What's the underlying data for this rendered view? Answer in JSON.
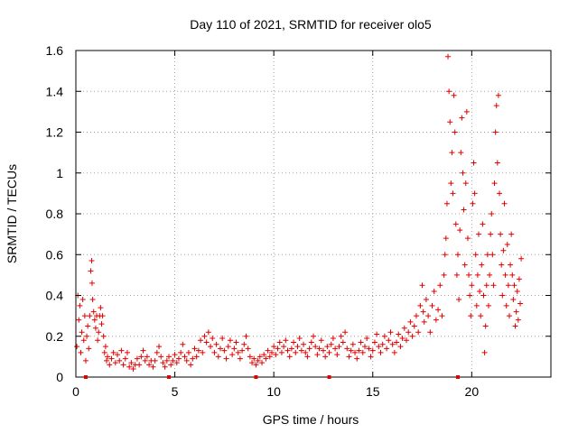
{
  "chart_data": {
    "type": "scatter",
    "title": "Day 110 of 2021, SRMTID for receiver olo5",
    "xlabel": "GPS time / hours",
    "ylabel": "SRMTID / TECUs",
    "xlim": [
      0,
      24
    ],
    "ylim": [
      0,
      1.6
    ],
    "xticks": [
      0,
      5,
      10,
      15,
      20
    ],
    "yticks": [
      0,
      0.2,
      0.4,
      0.6,
      0.8,
      1,
      1.2,
      1.4,
      1.6
    ],
    "xtick_labels": [
      "0",
      "5",
      "10",
      "15",
      "20"
    ],
    "ytick_labels": [
      "0",
      "0.2",
      "0.4",
      "0.6",
      "0.8",
      "1",
      "1.2",
      "1.4",
      "1.6"
    ],
    "grid": true,
    "marker": "+",
    "color": "#e00000",
    "axis_markers_x": [
      0.5,
      4.7,
      9.1,
      12.8,
      19.3
    ],
    "series": [
      {
        "name": "SRMTID",
        "points": [
          [
            0.05,
            0.15
          ],
          [
            0.1,
            0.4
          ],
          [
            0.15,
            0.28
          ],
          [
            0.2,
            0.35
          ],
          [
            0.25,
            0.12
          ],
          [
            0.3,
            0.22
          ],
          [
            0.35,
            0.38
          ],
          [
            0.4,
            0.18
          ],
          [
            0.45,
            0.3
          ],
          [
            0.5,
            0.08
          ],
          [
            0.55,
            0.2
          ],
          [
            0.6,
            0.25
          ],
          [
            0.65,
            0.14
          ],
          [
            0.7,
            0.3
          ],
          [
            0.75,
            0.52
          ],
          [
            0.8,
            0.57
          ],
          [
            0.82,
            0.46
          ],
          [
            0.85,
            0.38
          ],
          [
            0.9,
            0.32
          ],
          [
            0.95,
            0.28
          ],
          [
            1.0,
            0.24
          ],
          [
            1.05,
            0.3
          ],
          [
            1.1,
            0.18
          ],
          [
            1.15,
            0.22
          ],
          [
            1.2,
            0.3
          ],
          [
            1.25,
            0.34
          ],
          [
            1.3,
            0.26
          ],
          [
            1.35,
            0.3
          ],
          [
            1.4,
            0.2
          ],
          [
            1.45,
            0.12
          ],
          [
            1.5,
            0.15
          ],
          [
            1.55,
            0.08
          ],
          [
            1.6,
            0.1
          ],
          [
            1.7,
            0.06
          ],
          [
            1.8,
            0.09
          ],
          [
            1.9,
            0.12
          ],
          [
            2.0,
            0.07
          ],
          [
            2.1,
            0.11
          ],
          [
            2.2,
            0.08
          ],
          [
            2.3,
            0.13
          ],
          [
            2.4,
            0.06
          ],
          [
            2.5,
            0.09
          ],
          [
            2.6,
            0.12
          ],
          [
            2.7,
            0.05
          ],
          [
            2.8,
            0.07
          ],
          [
            2.9,
            0.04
          ],
          [
            3.0,
            0.06
          ],
          [
            3.1,
            0.09
          ],
          [
            3.2,
            0.06
          ],
          [
            3.3,
            0.1
          ],
          [
            3.4,
            0.13
          ],
          [
            3.5,
            0.08
          ],
          [
            3.6,
            0.1
          ],
          [
            3.7,
            0.06
          ],
          [
            3.8,
            0.08
          ],
          [
            3.9,
            0.05
          ],
          [
            4.0,
            0.08
          ],
          [
            4.1,
            0.12
          ],
          [
            4.2,
            0.15
          ],
          [
            4.3,
            0.1
          ],
          [
            4.4,
            0.07
          ],
          [
            4.5,
            0.05
          ],
          [
            4.6,
            0.08
          ],
          [
            4.7,
            0.1
          ],
          [
            4.8,
            0.06
          ],
          [
            4.9,
            0.08
          ],
          [
            5.0,
            0.11
          ],
          [
            5.1,
            0.07
          ],
          [
            5.2,
            0.09
          ],
          [
            5.3,
            0.12
          ],
          [
            5.4,
            0.16
          ],
          [
            5.5,
            0.1
          ],
          [
            5.6,
            0.08
          ],
          [
            5.7,
            0.12
          ],
          [
            5.8,
            0.06
          ],
          [
            5.9,
            0.09
          ],
          [
            6.0,
            0.14
          ],
          [
            6.1,
            0.1
          ],
          [
            6.2,
            0.13
          ],
          [
            6.3,
            0.18
          ],
          [
            6.4,
            0.12
          ],
          [
            6.5,
            0.2
          ],
          [
            6.6,
            0.17
          ],
          [
            6.7,
            0.22
          ],
          [
            6.8,
            0.15
          ],
          [
            6.9,
            0.19
          ],
          [
            7.0,
            0.12
          ],
          [
            7.1,
            0.16
          ],
          [
            7.2,
            0.1
          ],
          [
            7.3,
            0.14
          ],
          [
            7.4,
            0.19
          ],
          [
            7.5,
            0.13
          ],
          [
            7.6,
            0.09
          ],
          [
            7.7,
            0.15
          ],
          [
            7.8,
            0.18
          ],
          [
            7.9,
            0.11
          ],
          [
            8.0,
            0.14
          ],
          [
            8.1,
            0.17
          ],
          [
            8.2,
            0.12
          ],
          [
            8.3,
            0.09
          ],
          [
            8.4,
            0.13
          ],
          [
            8.5,
            0.16
          ],
          [
            8.6,
            0.2
          ],
          [
            8.7,
            0.14
          ],
          [
            8.8,
            0.1
          ],
          [
            8.9,
            0.07
          ],
          [
            9.0,
            0.09
          ],
          [
            9.1,
            0.06
          ],
          [
            9.2,
            0.08
          ],
          [
            9.3,
            0.1
          ],
          [
            9.4,
            0.07
          ],
          [
            9.5,
            0.11
          ],
          [
            9.6,
            0.09
          ],
          [
            9.7,
            0.13
          ],
          [
            9.8,
            0.1
          ],
          [
            9.9,
            0.12
          ],
          [
            10.0,
            0.15
          ],
          [
            10.1,
            0.11
          ],
          [
            10.2,
            0.14
          ],
          [
            10.3,
            0.17
          ],
          [
            10.4,
            0.12
          ],
          [
            10.5,
            0.15
          ],
          [
            10.6,
            0.18
          ],
          [
            10.7,
            0.13
          ],
          [
            10.8,
            0.1
          ],
          [
            10.9,
            0.14
          ],
          [
            11.0,
            0.17
          ],
          [
            11.1,
            0.12
          ],
          [
            11.2,
            0.15
          ],
          [
            11.3,
            0.19
          ],
          [
            11.4,
            0.13
          ],
          [
            11.5,
            0.16
          ],
          [
            11.6,
            0.12
          ],
          [
            11.7,
            0.1
          ],
          [
            11.8,
            0.14
          ],
          [
            11.9,
            0.17
          ],
          [
            12.0,
            0.2
          ],
          [
            12.1,
            0.15
          ],
          [
            12.2,
            0.11
          ],
          [
            12.3,
            0.14
          ],
          [
            12.4,
            0.18
          ],
          [
            12.5,
            0.13
          ],
          [
            12.6,
            0.1
          ],
          [
            12.7,
            0.15
          ],
          [
            12.8,
            0.12
          ],
          [
            12.9,
            0.16
          ],
          [
            13.0,
            0.19
          ],
          [
            13.1,
            0.14
          ],
          [
            13.2,
            0.11
          ],
          [
            13.3,
            0.15
          ],
          [
            13.4,
            0.2
          ],
          [
            13.5,
            0.17
          ],
          [
            13.6,
            0.22
          ],
          [
            13.7,
            0.14
          ],
          [
            13.8,
            0.1
          ],
          [
            13.9,
            0.13
          ],
          [
            14.0,
            0.16
          ],
          [
            14.1,
            0.12
          ],
          [
            14.2,
            0.09
          ],
          [
            14.3,
            0.13
          ],
          [
            14.4,
            0.17
          ],
          [
            14.5,
            0.12
          ],
          [
            14.6,
            0.15
          ],
          [
            14.7,
            0.19
          ],
          [
            14.8,
            0.14
          ],
          [
            14.9,
            0.1
          ],
          [
            15.0,
            0.13
          ],
          [
            15.1,
            0.17
          ],
          [
            15.2,
            0.21
          ],
          [
            15.3,
            0.15
          ],
          [
            15.4,
            0.12
          ],
          [
            15.5,
            0.16
          ],
          [
            15.6,
            0.2
          ],
          [
            15.7,
            0.14
          ],
          [
            15.8,
            0.18
          ],
          [
            15.9,
            0.22
          ],
          [
            16.0,
            0.16
          ],
          [
            16.1,
            0.12
          ],
          [
            16.2,
            0.17
          ],
          [
            16.3,
            0.21
          ],
          [
            16.4,
            0.15
          ],
          [
            16.5,
            0.19
          ],
          [
            16.6,
            0.24
          ],
          [
            16.7,
            0.18
          ],
          [
            16.8,
            0.22
          ],
          [
            16.9,
            0.27
          ],
          [
            17.0,
            0.2
          ],
          [
            17.1,
            0.25
          ],
          [
            17.2,
            0.3
          ],
          [
            17.3,
            0.22
          ],
          [
            17.4,
            0.35
          ],
          [
            17.5,
            0.45
          ],
          [
            17.55,
            0.32
          ],
          [
            17.6,
            0.27
          ],
          [
            17.7,
            0.38
          ],
          [
            17.8,
            0.3
          ],
          [
            17.9,
            0.22
          ],
          [
            18.0,
            0.35
          ],
          [
            18.1,
            0.42
          ],
          [
            18.2,
            0.28
          ],
          [
            18.3,
            0.33
          ],
          [
            18.4,
            0.45
          ],
          [
            18.5,
            0.3
          ],
          [
            18.6,
            0.5
          ],
          [
            18.65,
            0.6
          ],
          [
            18.7,
            0.68
          ],
          [
            18.75,
            0.85
          ],
          [
            18.8,
            1.57
          ],
          [
            18.85,
            1.4
          ],
          [
            18.9,
            1.25
          ],
          [
            18.95,
            0.95
          ],
          [
            19.0,
            1.1
          ],
          [
            19.05,
            0.9
          ],
          [
            19.1,
            1.38
          ],
          [
            19.15,
            1.2
          ],
          [
            19.2,
            0.75
          ],
          [
            19.25,
            0.5
          ],
          [
            19.3,
            0.6
          ],
          [
            19.35,
            0.38
          ],
          [
            19.4,
            0.72
          ],
          [
            19.45,
            1.1
          ],
          [
            19.5,
            1.27
          ],
          [
            19.55,
            1.0
          ],
          [
            19.6,
            0.82
          ],
          [
            19.65,
            0.55
          ],
          [
            19.7,
            0.95
          ],
          [
            19.75,
            1.3
          ],
          [
            19.8,
            0.68
          ],
          [
            19.85,
            0.5
          ],
          [
            19.9,
            0.4
          ],
          [
            19.95,
            0.3
          ],
          [
            20.0,
            0.45
          ],
          [
            20.05,
            0.85
          ],
          [
            20.1,
            1.05
          ],
          [
            20.15,
            0.9
          ],
          [
            20.2,
            0.6
          ],
          [
            20.25,
            0.35
          ],
          [
            20.3,
            0.5
          ],
          [
            20.35,
            0.7
          ],
          [
            20.4,
            0.42
          ],
          [
            20.45,
            0.3
          ],
          [
            20.5,
            0.55
          ],
          [
            20.55,
            0.75
          ],
          [
            20.6,
            0.4
          ],
          [
            20.65,
            0.12
          ],
          [
            20.7,
            0.25
          ],
          [
            20.75,
            0.45
          ],
          [
            20.8,
            0.6
          ],
          [
            20.85,
            0.35
          ],
          [
            20.9,
            0.5
          ],
          [
            20.95,
            0.7
          ],
          [
            21.0,
            0.8
          ],
          [
            21.05,
            0.6
          ],
          [
            21.1,
            0.45
          ],
          [
            21.15,
            0.95
          ],
          [
            21.2,
            1.2
          ],
          [
            21.25,
            1.33
          ],
          [
            21.3,
            1.05
          ],
          [
            21.35,
            1.38
          ],
          [
            21.4,
            0.9
          ],
          [
            21.45,
            0.7
          ],
          [
            21.5,
            0.55
          ],
          [
            21.55,
            0.4
          ],
          [
            21.6,
            0.62
          ],
          [
            21.65,
            0.85
          ],
          [
            21.7,
            0.5
          ],
          [
            21.75,
            0.35
          ],
          [
            21.8,
            0.65
          ],
          [
            21.85,
            0.45
          ],
          [
            21.9,
            0.3
          ],
          [
            21.95,
            0.55
          ],
          [
            22.0,
            0.7
          ],
          [
            22.05,
            0.5
          ],
          [
            22.1,
            0.38
          ],
          [
            22.15,
            0.45
          ],
          [
            22.2,
            0.25
          ],
          [
            22.25,
            0.32
          ],
          [
            22.3,
            0.42
          ],
          [
            22.35,
            0.28
          ],
          [
            22.4,
            0.48
          ],
          [
            22.45,
            0.36
          ],
          [
            22.5,
            0.58
          ]
        ]
      }
    ]
  }
}
